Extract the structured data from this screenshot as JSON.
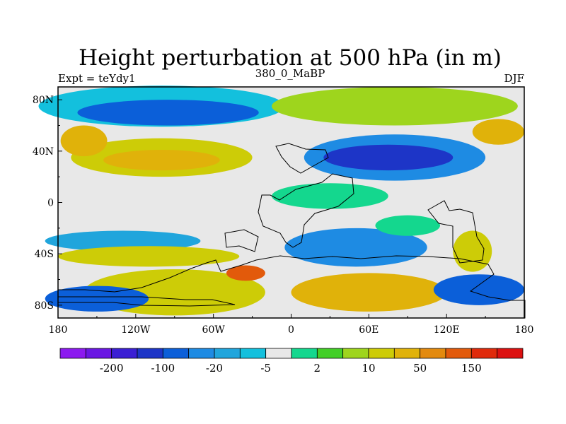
{
  "chart_data": {
    "type": "heatmap",
    "title": "Height perturbation at 500 hPa (in m)",
    "left_label": "Expt = teYdy1",
    "center_label": "380_0_MaBP",
    "right_label": "DJF",
    "xlim": [
      -180,
      180
    ],
    "ylim": [
      -90,
      90
    ],
    "x_ticks": [
      {
        "value": -180,
        "label": "180"
      },
      {
        "value": -120,
        "label": "120W"
      },
      {
        "value": -60,
        "label": "60W"
      },
      {
        "value": 0,
        "label": "0"
      },
      {
        "value": 60,
        "label": "60E"
      },
      {
        "value": 120,
        "label": "120E"
      },
      {
        "value": 180,
        "label": "180"
      }
    ],
    "y_ticks": [
      {
        "value": 80,
        "label": "80N"
      },
      {
        "value": 40,
        "label": "40N"
      },
      {
        "value": 0,
        "label": "0"
      },
      {
        "value": -40,
        "label": "40S"
      },
      {
        "value": -80,
        "label": "80S"
      }
    ],
    "colorbar": {
      "colors": [
        "#8c1aef",
        "#6a17e3",
        "#3b1fd4",
        "#1d35c7",
        "#0b5fd9",
        "#1e8be3",
        "#20a5dc",
        "#13c0dd",
        "#e8e8e8",
        "#14d78e",
        "#42cf27",
        "#9ed51d",
        "#cdcc07",
        "#e0b20a",
        "#e38a0e",
        "#e25a0b",
        "#e02a0b",
        "#dc1010"
      ],
      "labels": [
        {
          "boundary": 2,
          "text": "-200"
        },
        {
          "boundary": 4,
          "text": "-100"
        },
        {
          "boundary": 6,
          "text": "-20"
        },
        {
          "boundary": 8,
          "text": "-5"
        },
        {
          "boundary": 10,
          "text": "2"
        },
        {
          "boundary": 12,
          "text": "10"
        },
        {
          "boundary": 14,
          "text": "50"
        },
        {
          "boundary": 16,
          "text": "150"
        }
      ]
    },
    "field": {
      "background_class": 8,
      "blobs": [
        {
          "lon": -100,
          "lat": 75,
          "rlon": 95,
          "rlat": 16,
          "level": 7
        },
        {
          "lon": -95,
          "lat": 70,
          "rlon": 70,
          "rlat": 10,
          "level": 4
        },
        {
          "lon": -100,
          "lat": 35,
          "rlon": 70,
          "rlat": 15,
          "level": 12
        },
        {
          "lon": -100,
          "lat": 33,
          "rlon": 45,
          "rlat": 8,
          "level": 13
        },
        {
          "lon": -160,
          "lat": 48,
          "rlon": 18,
          "rlat": 12,
          "level": 13
        },
        {
          "lon": 80,
          "lat": 35,
          "rlon": 70,
          "rlat": 18,
          "level": 5
        },
        {
          "lon": 75,
          "lat": 35,
          "rlon": 50,
          "rlat": 10,
          "level": 3
        },
        {
          "lon": 80,
          "lat": 75,
          "rlon": 95,
          "rlat": 15,
          "level": 11
        },
        {
          "lon": 160,
          "lat": 55,
          "rlon": 20,
          "rlat": 10,
          "level": 13
        },
        {
          "lon": 30,
          "lat": 5,
          "rlon": 45,
          "rlat": 10,
          "level": 9
        },
        {
          "lon": -130,
          "lat": -30,
          "rlon": 60,
          "rlat": 8,
          "level": 6
        },
        {
          "lon": -110,
          "lat": -42,
          "rlon": 70,
          "rlat": 8,
          "level": 12
        },
        {
          "lon": 50,
          "lat": -35,
          "rlon": 55,
          "rlat": 15,
          "level": 5
        },
        {
          "lon": 60,
          "lat": -70,
          "rlon": 60,
          "rlat": 15,
          "level": 13
        },
        {
          "lon": -90,
          "lat": -70,
          "rlon": 70,
          "rlat": 18,
          "level": 12
        },
        {
          "lon": -35,
          "lat": -55,
          "rlon": 15,
          "rlat": 6,
          "level": 15
        },
        {
          "lon": 140,
          "lat": -38,
          "rlon": 15,
          "rlat": 16,
          "level": 12
        },
        {
          "lon": 145,
          "lat": -68,
          "rlon": 35,
          "rlat": 12,
          "level": 4
        },
        {
          "lon": -150,
          "lat": -75,
          "rlon": 40,
          "rlat": 10,
          "level": 4
        },
        {
          "lon": 90,
          "lat": -18,
          "rlon": 25,
          "rlat": 8,
          "level": 9
        }
      ]
    }
  }
}
